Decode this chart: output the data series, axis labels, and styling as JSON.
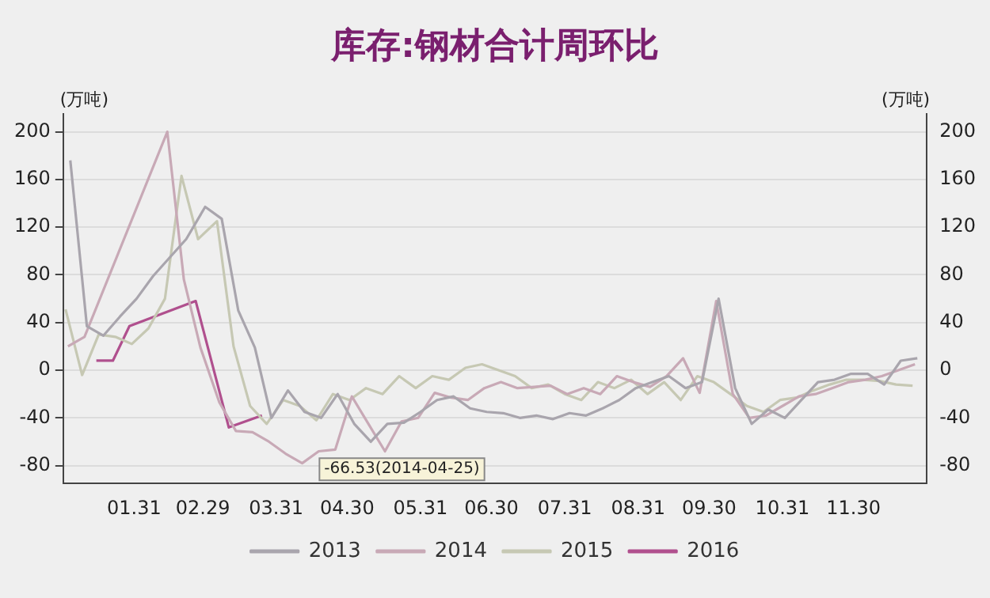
{
  "chart_data": {
    "type": "line",
    "title": "库存:钢材合计周环比",
    "ylabel": "(万吨)",
    "y2label": "(万吨)",
    "xlim": [
      "--01-01",
      "--12-31"
    ],
    "xticks": [
      {
        "value": "--01-31",
        "label": "01.31"
      },
      {
        "value": "--02-29",
        "label": "02.29"
      },
      {
        "value": "--03-31",
        "label": "03.31"
      },
      {
        "value": "--04-30",
        "label": "04.30"
      },
      {
        "value": "--05-31",
        "label": "05.31"
      },
      {
        "value": "--06-30",
        "label": "06.30"
      },
      {
        "value": "--07-31",
        "label": "07.31"
      },
      {
        "value": "--08-31",
        "label": "08.31"
      },
      {
        "value": "--09-30",
        "label": "09.30"
      },
      {
        "value": "--10-31",
        "label": "10.31"
      },
      {
        "value": "--11-30",
        "label": "11.30"
      }
    ],
    "ylim": [
      -95,
      215
    ],
    "yticks": [
      -80,
      -40,
      0,
      40,
      80,
      120,
      160,
      200
    ],
    "y2lim": [
      -95,
      215
    ],
    "y2ticks": [
      -80,
      -40,
      0,
      40,
      80,
      120,
      160,
      200
    ],
    "grid": "y",
    "legend": "bottom",
    "marker": "none",
    "line_style": "solid",
    "annotations": [
      {
        "text": "-66.53(2014-04-25)",
        "x": "--04-25",
        "y": -66.53
      }
    ],
    "series": [
      {
        "name": "2013",
        "color": "#a9a5ad",
        "x": [
          "--01-04",
          "--01-11",
          "--01-18",
          "--01-25",
          "--02-01",
          "--02-08",
          "--02-22",
          "--03-01",
          "--03-08",
          "--03-15",
          "--03-22",
          "--03-29",
          "--04-05",
          "--04-12",
          "--04-19",
          "--04-26",
          "--05-03",
          "--05-10",
          "--05-17",
          "--05-24",
          "--05-31",
          "--06-07",
          "--06-14",
          "--06-21",
          "--06-28",
          "--07-05",
          "--07-12",
          "--07-19",
          "--07-26",
          "--08-02",
          "--08-09",
          "--08-16",
          "--08-23",
          "--08-30",
          "--09-06",
          "--09-13",
          "--09-20",
          "--09-27",
          "--10-04",
          "--10-11",
          "--10-18",
          "--10-25",
          "--11-01",
          "--11-08",
          "--11-15",
          "--11-22",
          "--11-29",
          "--12-06",
          "--12-13",
          "--12-20",
          "--12-27"
        ],
        "values": [
          176,
          37,
          29,
          45,
          60,
          79,
          110,
          137,
          127,
          50,
          19,
          -40,
          -17,
          -35,
          -40,
          -20,
          -45,
          -60,
          -45,
          -44,
          -35,
          -25,
          -22,
          -32,
          -35,
          -36,
          -40,
          -38,
          -41,
          -36,
          -38,
          -32,
          -25,
          -15,
          -10,
          -5,
          -15,
          -10,
          60,
          -15,
          -45,
          -33,
          -40,
          -25,
          -10,
          -8,
          -3,
          -3,
          -12,
          8,
          10
        ]
      },
      {
        "name": "2014",
        "color": "#c8a9b6",
        "x": [
          "--01-03",
          "--01-10",
          "--02-14",
          "--02-21",
          "--02-28",
          "--03-07",
          "--03-14",
          "--03-21",
          "--03-28",
          "--04-04",
          "--04-11",
          "--04-18",
          "--04-25",
          "--05-02",
          "--05-09",
          "--05-16",
          "--05-23",
          "--05-30",
          "--06-06",
          "--06-13",
          "--06-20",
          "--06-27",
          "--07-04",
          "--07-11",
          "--07-18",
          "--07-25",
          "--08-01",
          "--08-08",
          "--08-15",
          "--08-22",
          "--08-29",
          "--09-05",
          "--09-12",
          "--09-19",
          "--09-26",
          "--10-03",
          "--10-10",
          "--10-17",
          "--10-24",
          "--10-31",
          "--11-07",
          "--11-14",
          "--11-21",
          "--11-28",
          "--12-05",
          "--12-12",
          "--12-19",
          "--12-26"
        ],
        "values": [
          20,
          28,
          200,
          76,
          19,
          -27,
          -51,
          -52,
          -60,
          -70,
          -78,
          -68,
          -66.53,
          -22,
          -45,
          -68,
          -43,
          -40,
          -19,
          -23,
          -25,
          -15,
          -10,
          -15,
          -14,
          -13,
          -20,
          -15,
          -20,
          -5,
          -10,
          -14,
          -5,
          10,
          -19,
          58,
          -20,
          -40,
          -38,
          -30,
          -22,
          -20,
          -15,
          -10,
          -8,
          -5,
          0,
          5
        ]
      },
      {
        "name": "2015",
        "color": "#c6c8b3",
        "x": [
          "--01-02",
          "--01-09",
          "--01-16",
          "--01-23",
          "--01-30",
          "--02-06",
          "--02-13",
          "--02-20",
          "--02-27",
          "--03-06",
          "--03-13",
          "--03-20",
          "--03-27",
          "--04-03",
          "--04-10",
          "--04-17",
          "--04-24",
          "--05-01",
          "--05-08",
          "--05-15",
          "--05-22",
          "--05-29",
          "--06-05",
          "--06-12",
          "--06-19",
          "--06-26",
          "--07-03",
          "--07-10",
          "--07-17",
          "--07-24",
          "--07-31",
          "--08-07",
          "--08-14",
          "--08-21",
          "--08-28",
          "--09-04",
          "--09-11",
          "--09-18",
          "--09-25",
          "--10-02",
          "--10-09",
          "--10-16",
          "--10-23",
          "--10-30",
          "--11-06",
          "--11-13",
          "--11-20",
          "--11-27",
          "--12-04",
          "--12-11",
          "--12-18",
          "--12-25"
        ],
        "values": [
          51,
          -4,
          30,
          28,
          22,
          35,
          60,
          163,
          110,
          125,
          20,
          -30,
          -45,
          -25,
          -30,
          -42,
          -20,
          -25,
          -15,
          -20,
          -5,
          -15,
          -5,
          -8,
          2,
          5,
          0,
          -5,
          -15,
          -12,
          -20,
          -25,
          -10,
          -15,
          -8,
          -20,
          -10,
          -25,
          -5,
          -10,
          -20,
          -30,
          -35,
          -25,
          -23,
          -17,
          -12,
          -8,
          -8,
          -9,
          -12,
          -13
        ]
      },
      {
        "name": "2016",
        "color": "#b0508e",
        "x": [
          "--01-15",
          "--01-22",
          "--01-29",
          "--02-26",
          "--03-11",
          "--03-25"
        ],
        "values": [
          8,
          8,
          37,
          58,
          -48,
          -38
        ]
      }
    ]
  }
}
